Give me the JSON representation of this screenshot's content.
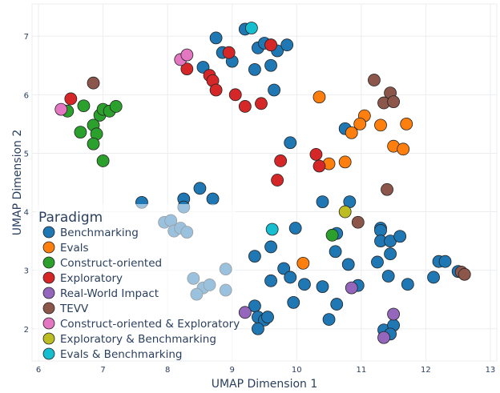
{
  "chart_data": {
    "type": "scatter",
    "xlabel": "UMAP Dimension 1",
    "ylabel": "UMAP Dimension 2",
    "xlim": [
      5.9,
      13.1
    ],
    "ylim": [
      1.45,
      7.55
    ],
    "x_ticks": [
      "6",
      "7",
      "8",
      "9",
      "10",
      "11",
      "12",
      "13"
    ],
    "y_ticks": [
      "2",
      "3",
      "4",
      "5",
      "6",
      "7"
    ],
    "grid": true,
    "legend_placement": "bottom-left",
    "legend_title": "Paradigm",
    "series": [
      {
        "name": "Benchmarking",
        "color": "#1f77b4",
        "points": [
          [
            8.75,
            6.97
          ],
          [
            9.2,
            7.12
          ],
          [
            9.0,
            6.57
          ],
          [
            8.85,
            6.72
          ],
          [
            9.4,
            6.8
          ],
          [
            9.5,
            6.88
          ],
          [
            9.6,
            6.85
          ],
          [
            9.7,
            6.75
          ],
          [
            9.85,
            6.85
          ],
          [
            9.35,
            6.43
          ],
          [
            9.6,
            6.5
          ],
          [
            9.65,
            6.08
          ],
          [
            8.55,
            6.47
          ],
          [
            10.75,
            5.42
          ],
          [
            9.9,
            5.18
          ],
          [
            8.5,
            4.4
          ],
          [
            8.7,
            4.22
          ],
          [
            8.25,
            4.22
          ],
          [
            8.25,
            4.08
          ],
          [
            7.6,
            4.16
          ],
          [
            7.95,
            3.82
          ],
          [
            8.05,
            3.85
          ],
          [
            8.1,
            3.67
          ],
          [
            8.2,
            3.72
          ],
          [
            8.3,
            3.65
          ],
          [
            10.4,
            4.17
          ],
          [
            10.82,
            4.17
          ],
          [
            11.3,
            3.72
          ],
          [
            11.3,
            3.68
          ],
          [
            11.3,
            3.5
          ],
          [
            11.45,
            3.5
          ],
          [
            11.6,
            3.58
          ],
          [
            11.45,
            3.28
          ],
          [
            11.25,
            3.14
          ],
          [
            10.62,
            3.63
          ],
          [
            10.6,
            3.32
          ],
          [
            10.8,
            3.1
          ],
          [
            9.6,
            3.4
          ],
          [
            9.35,
            3.24
          ],
          [
            9.98,
            3.72
          ],
          [
            8.9,
            3.02
          ],
          [
            8.4,
            2.86
          ],
          [
            8.55,
            2.7
          ],
          [
            8.65,
            2.75
          ],
          [
            8.45,
            2.59
          ],
          [
            8.9,
            2.66
          ],
          [
            9.8,
            3.03
          ],
          [
            9.6,
            2.82
          ],
          [
            9.9,
            2.88
          ],
          [
            10.12,
            2.76
          ],
          [
            10.4,
            2.72
          ],
          [
            10.95,
            2.74
          ],
          [
            11.42,
            2.9
          ],
          [
            11.72,
            2.76
          ],
          [
            12.12,
            2.88
          ],
          [
            12.2,
            3.15
          ],
          [
            12.3,
            3.15
          ],
          [
            12.5,
            2.98
          ],
          [
            9.35,
            2.39
          ],
          [
            9.4,
            2.2
          ],
          [
            9.5,
            2.15
          ],
          [
            9.55,
            2.2
          ],
          [
            9.4,
            2.0
          ],
          [
            9.95,
            2.45
          ],
          [
            10.62,
            2.42
          ],
          [
            10.5,
            2.16
          ],
          [
            11.35,
            1.98
          ],
          [
            11.5,
            2.06
          ],
          [
            11.45,
            1.91
          ]
        ]
      },
      {
        "name": "Evals",
        "color": "#ff7f0e",
        "points": [
          [
            10.35,
            5.96
          ],
          [
            11.05,
            5.64
          ],
          [
            11.3,
            5.48
          ],
          [
            10.98,
            5.5
          ],
          [
            10.85,
            5.35
          ],
          [
            11.7,
            5.5
          ],
          [
            11.5,
            5.12
          ],
          [
            11.65,
            5.07
          ],
          [
            10.75,
            4.85
          ],
          [
            10.5,
            4.82
          ],
          [
            10.1,
            3.12
          ]
        ]
      },
      {
        "name": "Construct-oriented",
        "color": "#2ca02c",
        "points": [
          [
            6.45,
            5.72
          ],
          [
            6.7,
            5.81
          ],
          [
            6.95,
            5.65
          ],
          [
            7.0,
            5.75
          ],
          [
            7.1,
            5.72
          ],
          [
            7.2,
            5.8
          ],
          [
            6.85,
            5.48
          ],
          [
            6.65,
            5.36
          ],
          [
            6.9,
            5.33
          ],
          [
            6.85,
            5.16
          ],
          [
            7.0,
            4.87
          ],
          [
            10.55,
            3.6
          ]
        ]
      },
      {
        "name": "Exploratory",
        "color": "#d62728",
        "points": [
          [
            8.3,
            6.44
          ],
          [
            8.65,
            6.33
          ],
          [
            8.7,
            6.24
          ],
          [
            8.75,
            6.08
          ],
          [
            8.95,
            6.72
          ],
          [
            9.6,
            6.85
          ],
          [
            9.05,
            6.0
          ],
          [
            9.2,
            5.8
          ],
          [
            9.45,
            5.85
          ],
          [
            6.5,
            5.93
          ],
          [
            10.3,
            4.98
          ],
          [
            10.35,
            4.78
          ],
          [
            9.75,
            4.87
          ],
          [
            9.7,
            4.54
          ]
        ]
      },
      {
        "name": "Real-World Impact",
        "color": "#9467bd",
        "points": [
          [
            10.85,
            2.7
          ],
          [
            11.5,
            2.25
          ],
          [
            11.35,
            1.85
          ],
          [
            9.2,
            2.28
          ]
        ]
      },
      {
        "name": "TEVV",
        "color": "#8c564b",
        "points": [
          [
            6.85,
            6.2
          ],
          [
            11.2,
            6.25
          ],
          [
            11.45,
            6.03
          ],
          [
            11.35,
            5.86
          ],
          [
            11.5,
            5.88
          ],
          [
            11.4,
            4.38
          ],
          [
            10.95,
            3.82
          ],
          [
            12.55,
            2.97
          ],
          [
            12.6,
            2.93
          ]
        ]
      },
      {
        "name": "Construct-oriented & Exploratory",
        "color": "#e377c2",
        "points": [
          [
            8.2,
            6.6
          ],
          [
            8.3,
            6.68
          ],
          [
            6.35,
            5.75
          ]
        ]
      },
      {
        "name": "Exploratory & Benchmarking",
        "color": "#bcbd22",
        "points": [
          [
            10.75,
            4.0
          ]
        ]
      },
      {
        "name": "Evals & Benchmarking",
        "color": "#17becf",
        "points": [
          [
            9.3,
            7.14
          ],
          [
            9.62,
            3.7
          ]
        ]
      }
    ]
  }
}
